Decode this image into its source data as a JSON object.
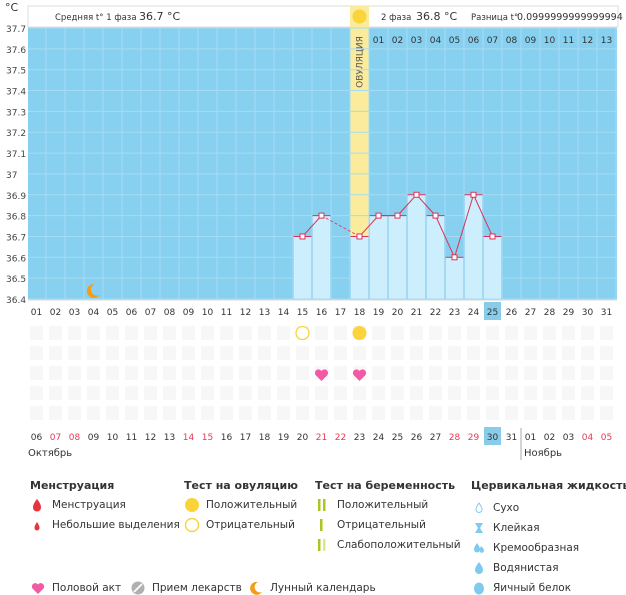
{
  "unit_label": "°C",
  "header": {
    "phase1_label": "Средняя t° 1 фаза",
    "phase1_value": "36.7 °C",
    "phase2_label": "2 фаза",
    "phase2_value": "36.8 °C",
    "diff_label": "Разница t°",
    "diff_value": "0.0999999999999994"
  },
  "ovulation_label": "ОВУЛЯЦИЯ",
  "chart_data": {
    "type": "bar",
    "ylim": [
      36.4,
      37.7
    ],
    "y_ticks": [
      "37.7",
      "37.6",
      "37.5",
      "37.4",
      "37.3",
      "37.2",
      "37.1",
      "37",
      "36.9",
      "36.8",
      "36.7",
      "36.6",
      "36.5",
      "36.4"
    ],
    "x_top": [
      "01",
      "02",
      "03",
      "04",
      "05",
      "06",
      "07",
      "08",
      "09",
      "10",
      "11",
      "12",
      "13"
    ],
    "cycle_days": [
      "01",
      "02",
      "03",
      "04",
      "05",
      "06",
      "07",
      "08",
      "09",
      "10",
      "11",
      "12",
      "13",
      "14",
      "15",
      "16",
      "17",
      "18",
      "19",
      "20",
      "21",
      "22",
      "23",
      "24",
      "25",
      "26",
      "27",
      "28",
      "29",
      "30",
      "31"
    ],
    "current_cycle_day": "25",
    "ovulation_cycle_day": "18",
    "temperature_points": [
      {
        "cycle_day": 15,
        "value": 36.7
      },
      {
        "cycle_day": 16,
        "value": 36.8
      },
      {
        "cycle_day": 18,
        "value": 36.7
      },
      {
        "cycle_day": 19,
        "value": 36.8
      },
      {
        "cycle_day": 20,
        "value": 36.8
      },
      {
        "cycle_day": 21,
        "value": 36.9
      },
      {
        "cycle_day": 22,
        "value": 36.8
      },
      {
        "cycle_day": 23,
        "value": 36.6
      },
      {
        "cycle_day": 24,
        "value": 36.9
      },
      {
        "cycle_day": 25,
        "value": 36.7
      }
    ],
    "dashed_segments": [
      [
        16,
        18
      ]
    ],
    "moon_cycle_day": 4,
    "ovulation_tests": [
      {
        "cycle_day": 15,
        "result": "negative"
      },
      {
        "cycle_day": 18,
        "result": "positive"
      }
    ],
    "intercourse_days": [
      16,
      18
    ],
    "calendar_dates": [
      {
        "label": "06",
        "red": false
      },
      {
        "label": "07",
        "red": true
      },
      {
        "label": "08",
        "red": true
      },
      {
        "label": "09",
        "red": false
      },
      {
        "label": "10",
        "red": false
      },
      {
        "label": "11",
        "red": false
      },
      {
        "label": "12",
        "red": false
      },
      {
        "label": "13",
        "red": false
      },
      {
        "label": "14",
        "red": true
      },
      {
        "label": "15",
        "red": true
      },
      {
        "label": "16",
        "red": false
      },
      {
        "label": "17",
        "red": false
      },
      {
        "label": "18",
        "red": false
      },
      {
        "label": "19",
        "red": false
      },
      {
        "label": "20",
        "red": false
      },
      {
        "label": "21",
        "red": true
      },
      {
        "label": "22",
        "red": true
      },
      {
        "label": "23",
        "red": false
      },
      {
        "label": "24",
        "red": false
      },
      {
        "label": "25",
        "red": false
      },
      {
        "label": "26",
        "red": false
      },
      {
        "label": "27",
        "red": false
      },
      {
        "label": "28",
        "red": true
      },
      {
        "label": "29",
        "red": true
      },
      {
        "label": "30",
        "red": false
      },
      {
        "label": "31",
        "red": false
      },
      {
        "label": "01",
        "red": false
      },
      {
        "label": "02",
        "red": false
      },
      {
        "label": "03",
        "red": false
      },
      {
        "label": "04",
        "red": true
      },
      {
        "label": "05",
        "red": true
      }
    ],
    "month_labels": [
      "Октябрь",
      "Ноябрь"
    ]
  },
  "legend": {
    "menstruation": {
      "title": "Менструация",
      "items": [
        "Менструация",
        "Небольшие выделения"
      ]
    },
    "ovulation_test": {
      "title": "Тест на овуляцию",
      "items": [
        "Положительный",
        "Отрицательный"
      ]
    },
    "pregnancy_test": {
      "title": "Тест на беременность",
      "items": [
        "Положительный",
        "Отрицательный",
        "Слабоположительный"
      ]
    },
    "cervical": {
      "title": "Цервикальная жидкость",
      "items": [
        "Сухо",
        "Клейкая",
        "Кремообразная",
        "Водянистая",
        "Яичный белок"
      ]
    },
    "bottom": [
      "Половой акт",
      "Прием лекарств",
      "Лунный календарь"
    ]
  },
  "colors": {
    "plot_bg": "#87d0f0",
    "bar_fill": "#cdeffd",
    "bar_stroke": "#9fd8f2",
    "ovulation": "#fbeb9c",
    "line": "#d9335a",
    "heart": "#f35aa6",
    "sun": "#fbd33a",
    "moon": "#f59d1b",
    "red_date": "#e53955",
    "drop": "#e8343d",
    "green_bar": "#a8c820",
    "grey_pill": "#b0b0b0",
    "cervical_blue": "#7ecbef",
    "highlight": "#88ccea"
  }
}
